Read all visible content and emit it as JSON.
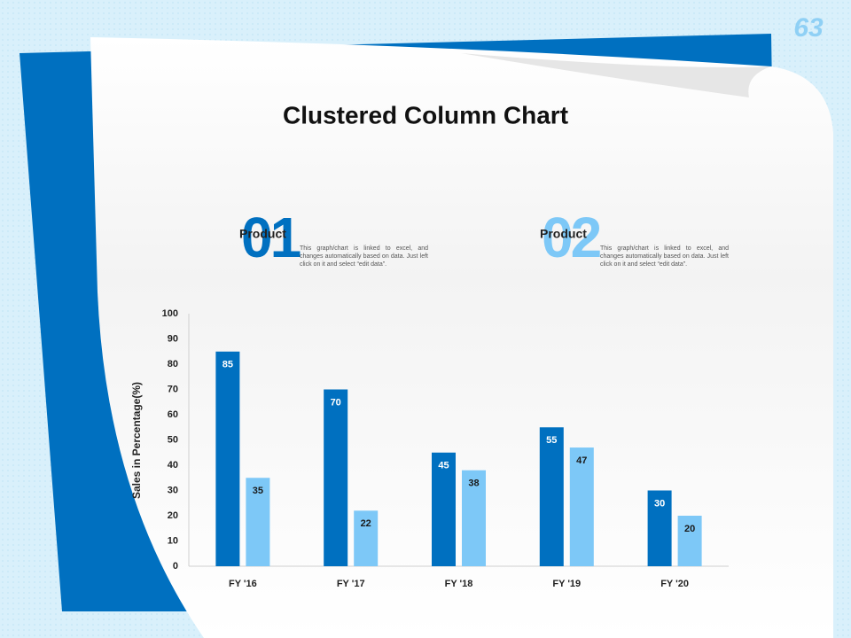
{
  "page_number": "63",
  "chart_data": {
    "type": "bar",
    "title": "Clustered Column Chart",
    "categories": [
      "FY '16",
      "FY '17",
      "FY '18",
      "FY '19",
      "FY '20"
    ],
    "series": [
      {
        "name": "Product",
        "number": "01",
        "description": "This graph/chart is linked to excel, and changes automatically based on data. Just left click on it and select “edit data”.",
        "color": "#0070c0",
        "label_color": "#ffffff",
        "values": [
          85,
          70,
          45,
          55,
          30
        ]
      },
      {
        "name": "Product",
        "number": "02",
        "description": "This graph/chart is linked to excel, and changes automatically based on data. Just left click on it and select “edit data”.",
        "color": "#7dc8f7",
        "label_color": "#1a1a1a",
        "values": [
          35,
          22,
          38,
          47,
          20
        ]
      }
    ],
    "y_label": "Sales in Percentage(%)",
    "ylim": [
      0,
      100
    ],
    "yticks": [
      0,
      10,
      20,
      30,
      40,
      50,
      60,
      70,
      80,
      90,
      100
    ],
    "grid": false
  }
}
